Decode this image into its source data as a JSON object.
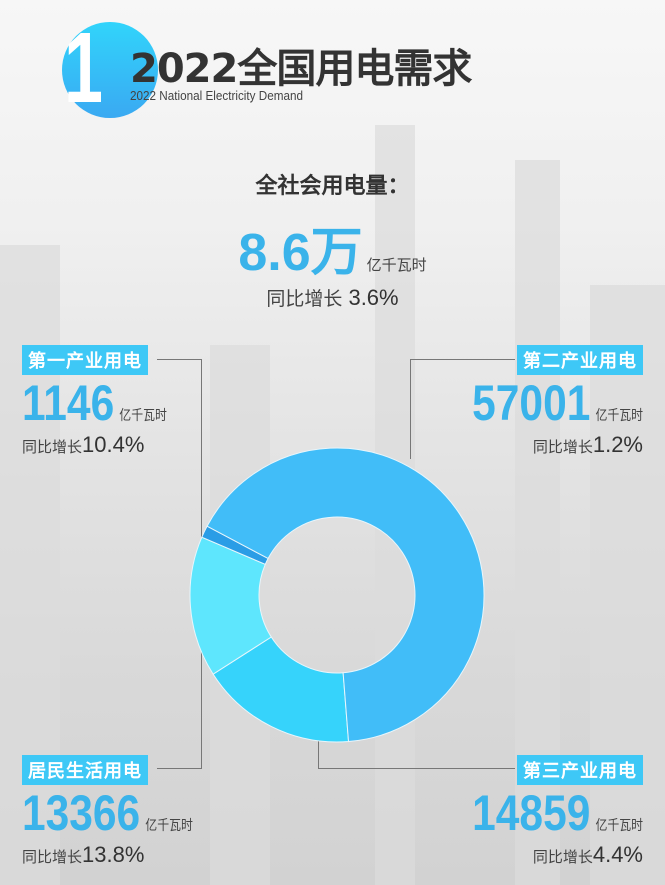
{
  "header": {
    "number": "1",
    "title": "2022全国用电需求",
    "subtitle": "2022 National Electricity Demand"
  },
  "total": {
    "label": "全社会用电量：",
    "value": "8.6万",
    "unit": "亿千瓦时",
    "growth_label": "同比增长",
    "growth": "3.6%"
  },
  "segments": [
    {
      "name": "第一产业用电",
      "value": "1146",
      "unit": "亿千瓦时",
      "growth_label": "同比增长",
      "growth": "10.4%"
    },
    {
      "name": "第二产业用电",
      "value": "57001",
      "unit": "亿千瓦时",
      "growth_label": "同比增长",
      "growth": "1.2%"
    },
    {
      "name": "居民生活用电",
      "value": "13366",
      "unit": "亿千瓦时",
      "growth_label": "同比增长",
      "growth": "13.8%"
    },
    {
      "name": "第三产业用电",
      "value": "14859",
      "unit": "亿千瓦时",
      "growth_label": "同比增长",
      "growth": "4.4%"
    }
  ],
  "chart_data": {
    "type": "pie",
    "donut": true,
    "unit": "亿千瓦时",
    "categories": [
      "第三产业用电",
      "居民生活用电",
      "第一产业用电",
      "第二产业用电"
    ],
    "values": [
      14859,
      13366,
      1146,
      57001
    ],
    "colors": [
      "#36d3fb",
      "#5ee6fd",
      "#2a9de6",
      "#41bdf8"
    ]
  }
}
